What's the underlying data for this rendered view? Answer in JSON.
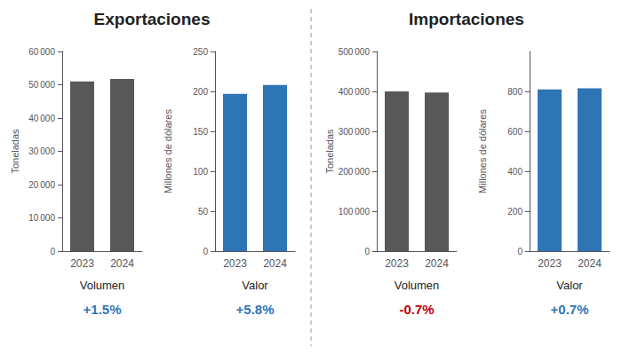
{
  "chart_data": [
    {
      "type": "bar",
      "title": "Exportaciones",
      "subtitle": "Volumen",
      "annotations": [
        {
          "text": "+1.5%",
          "color": "#2e75b6"
        }
      ],
      "categories": [
        "2023",
        "2024"
      ],
      "values": [
        51000,
        51750
      ],
      "color": "#585858",
      "ylabel": "Toneladas",
      "ylim": [
        0,
        60000
      ],
      "yticks": [
        0,
        {
          "value": 10000,
          "label": "10 000"
        },
        {
          "value": 20000,
          "label": "20 000"
        },
        {
          "value": 30000,
          "label": "30 000"
        },
        {
          "value": 40000,
          "label": "40 000"
        },
        {
          "value": 50000,
          "label": "50 000"
        },
        {
          "value": 60000,
          "label": "60 000"
        }
      ],
      "grid": false
    },
    {
      "type": "bar",
      "subtitle": "Valor",
      "annotations": [
        {
          "text": "+5.8%",
          "color": "#2e75b6"
        }
      ],
      "categories": [
        "2023",
        "2024"
      ],
      "values": [
        197,
        208
      ],
      "color": "#2e75b6",
      "ylabel": "Millones de dólares",
      "ylim": [
        0,
        250
      ],
      "yticks": [
        0,
        50,
        100,
        150,
        200,
        250
      ],
      "grid": false
    },
    {
      "type": "bar",
      "title": "Importaciones",
      "subtitle": "Volumen",
      "annotations": [
        {
          "text": "-0.7%",
          "color": "#c00000"
        }
      ],
      "categories": [
        "2023",
        "2024"
      ],
      "values": [
        400000,
        397000
      ],
      "color": "#585858",
      "ylabel": "Toneladas",
      "ylim": [
        0,
        500000
      ],
      "yticks": [
        0,
        {
          "value": 100000,
          "label": "100 000"
        },
        {
          "value": 200000,
          "label": "200 000"
        },
        {
          "value": 300000,
          "label": "300 000"
        },
        {
          "value": 400000,
          "label": "400 000"
        },
        {
          "value": 500000,
          "label": "500 000"
        }
      ],
      "grid": false
    },
    {
      "type": "bar",
      "subtitle": "Valor",
      "annotations": [
        {
          "text": "+0.7%",
          "color": "#2e75b6"
        }
      ],
      "categories": [
        "2023",
        "2024"
      ],
      "values": [
        810,
        816
      ],
      "color": "#2e75b6",
      "ylabel": "Millones de dólares",
      "ylim": [
        0,
        1000
      ],
      "yticks": [
        0,
        200,
        400,
        600,
        800
      ],
      "grid": false
    }
  ]
}
